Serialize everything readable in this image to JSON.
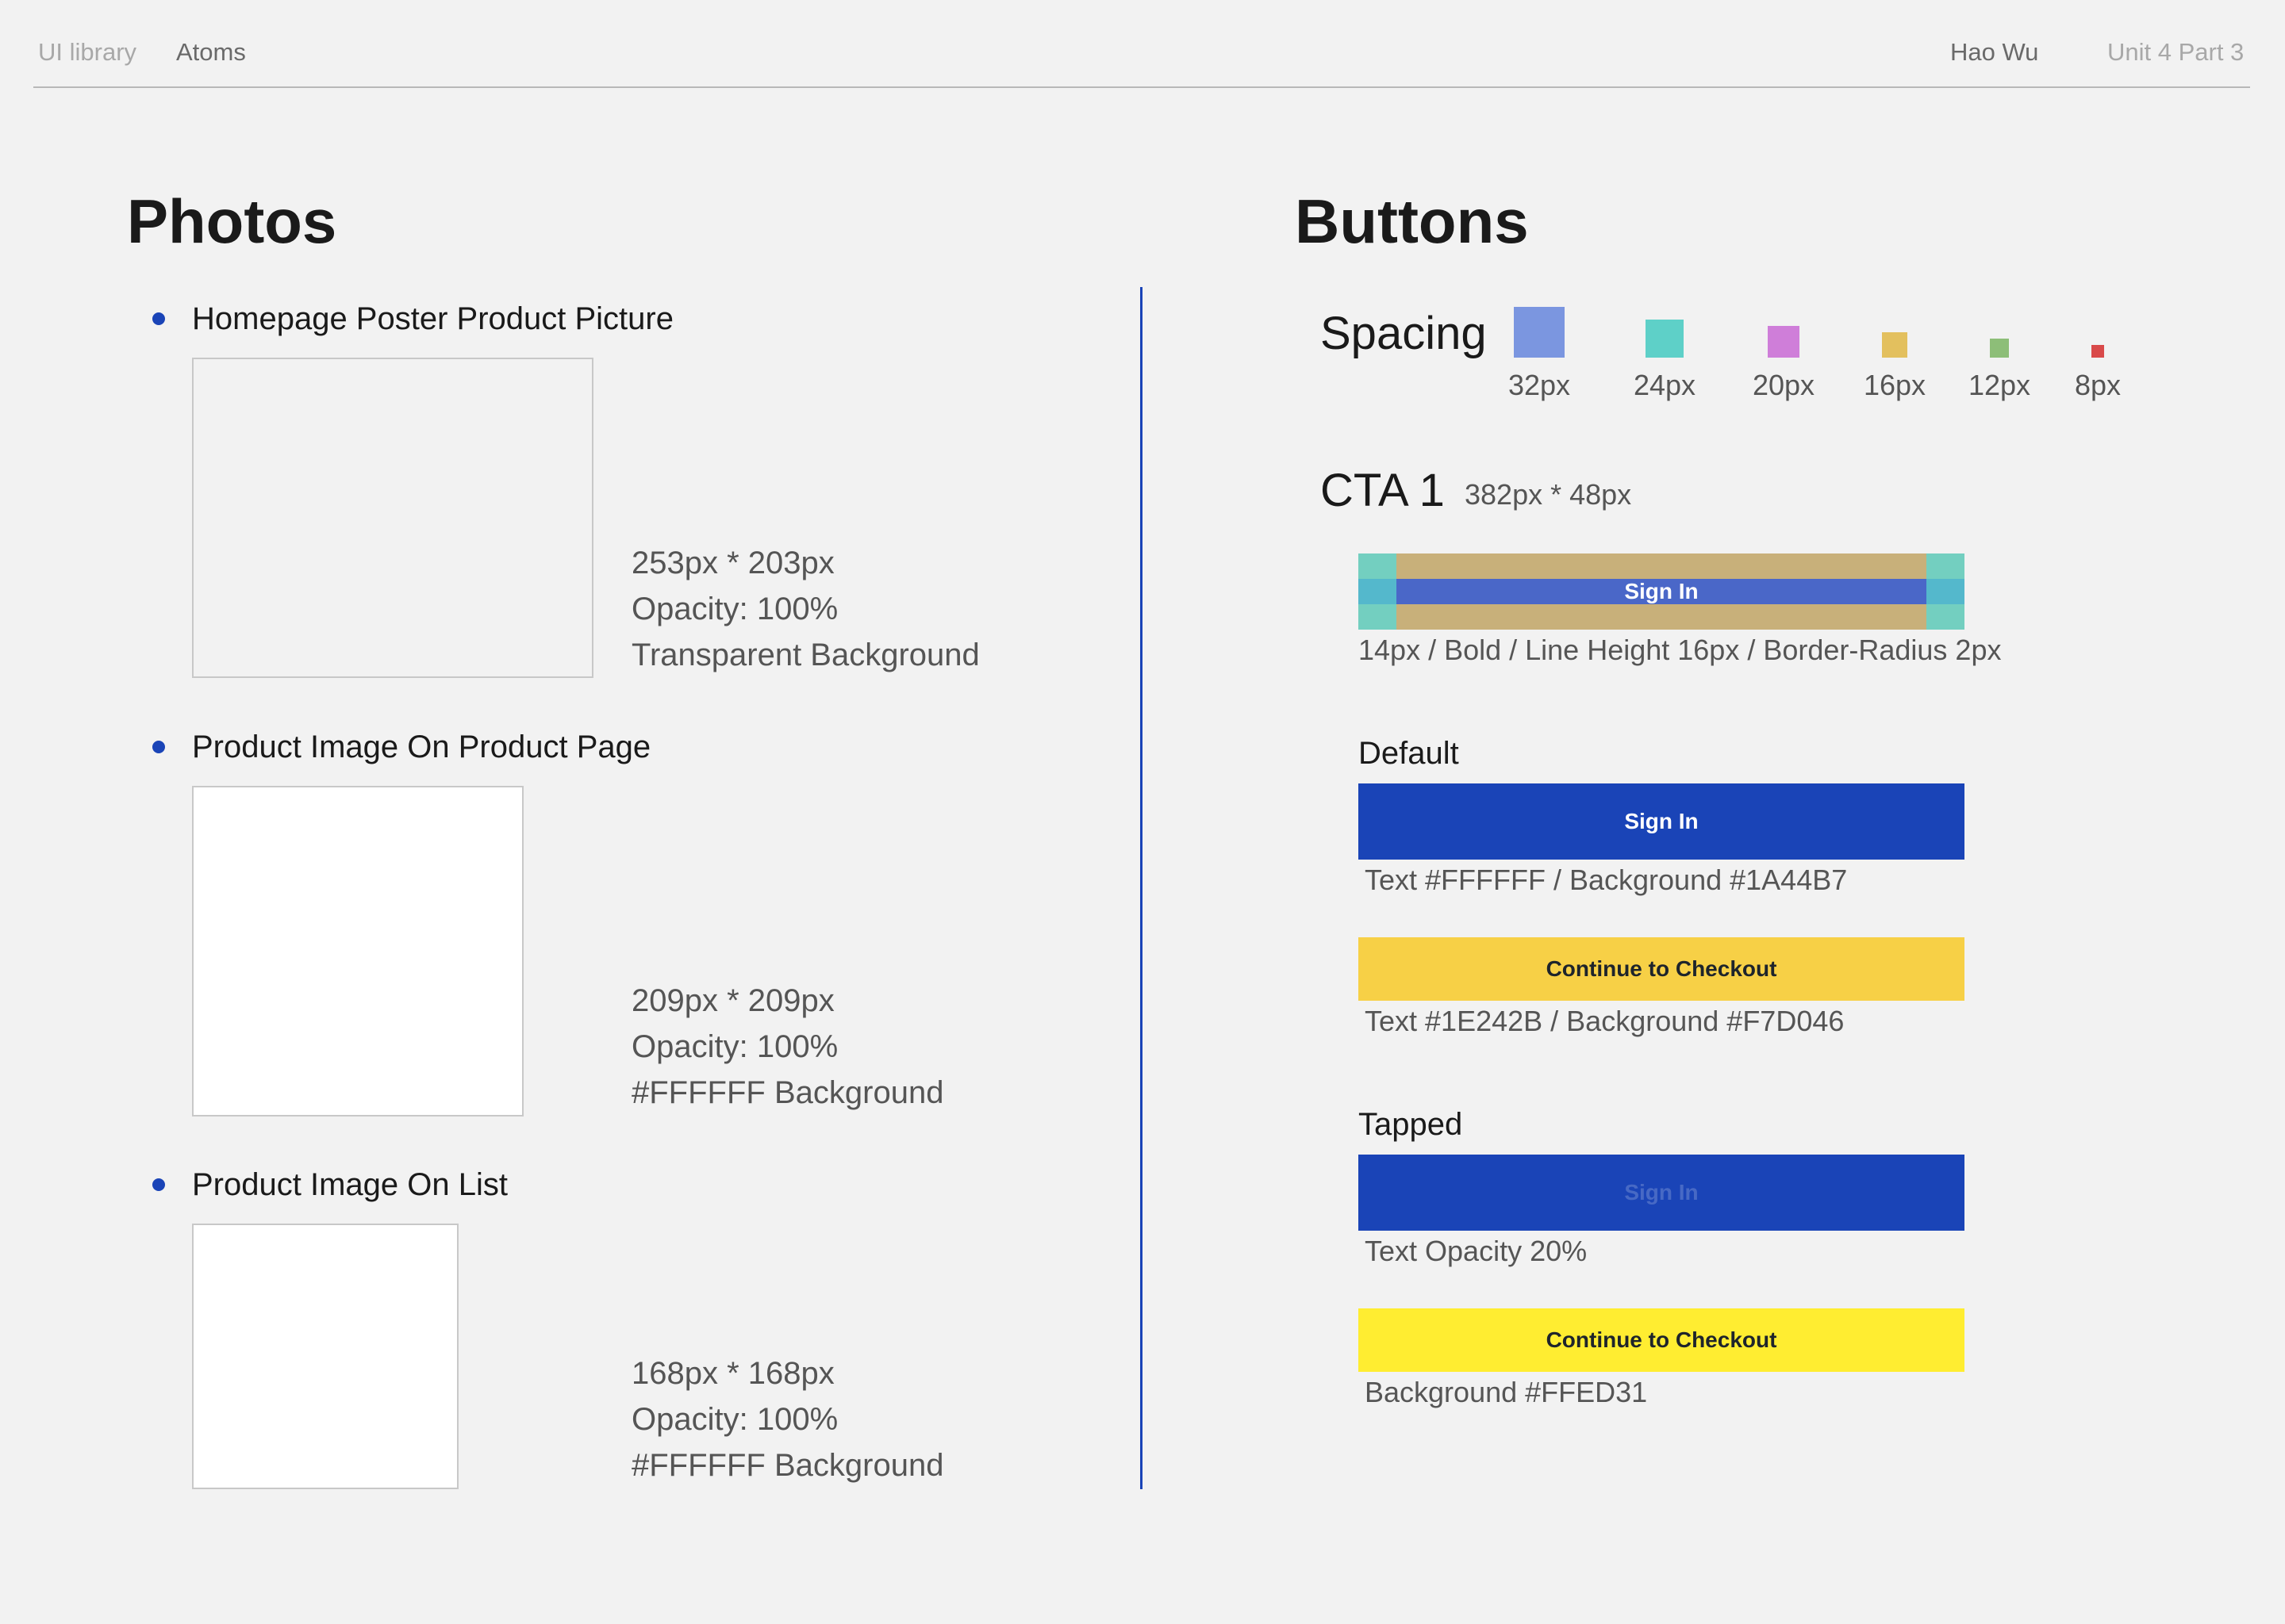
{
  "header": {
    "breadcrumb": [
      "UI library",
      "Atoms"
    ],
    "author": "Hao Wu",
    "unit": "Unit 4 Part 3"
  },
  "photos": {
    "title": "Photos",
    "items": [
      {
        "label": "Homepage Poster Product Picture",
        "specs": [
          "253px * 203px",
          "Opacity: 100%",
          "Transparent Background"
        ]
      },
      {
        "label": "Product Image On Product Page",
        "specs": [
          "209px * 209px",
          "Opacity: 100%",
          "#FFFFFF Background"
        ]
      },
      {
        "label": "Product Image On List",
        "specs": [
          "168px * 168px",
          "Opacity: 100%",
          "#FFFFFF Background"
        ]
      }
    ]
  },
  "buttons": {
    "title": "Buttons",
    "spacing": {
      "label": "Spacing",
      "swatches": [
        {
          "label": "32px",
          "color": "#7b96e0"
        },
        {
          "label": "24px",
          "color": "#5ed0c8"
        },
        {
          "label": "20px",
          "color": "#cf7ed9"
        },
        {
          "label": "16px",
          "color": "#e3c05e"
        },
        {
          "label": "12px",
          "color": "#8dbe78"
        },
        {
          "label": "8px",
          "color": "#d94a4a"
        }
      ]
    },
    "cta": {
      "title": "CTA 1",
      "size": "382px * 48px",
      "demo_label": "Sign In",
      "spec": "14px / Bold / Line Height 16px / Border-Radius 2px"
    },
    "default": {
      "label": "Default",
      "primary_label": "Sign In",
      "primary_desc": "Text #FFFFFF / Background #1A44B7",
      "secondary_label": "Continue to Checkout",
      "secondary_desc": "Text #1E242B / Background #F7D046"
    },
    "tapped": {
      "label": "Tapped",
      "primary_label": "Sign In",
      "primary_desc": "Text Opacity 20%",
      "secondary_label": "Continue to Checkout",
      "secondary_desc": "Background #FFED31"
    },
    "colors": {
      "primary_bg": "#1A44B7",
      "primary_text": "#FFFFFF",
      "secondary_bg": "#F7D046",
      "secondary_text": "#1E242B",
      "tapped_secondary_bg": "#FFED31"
    }
  }
}
